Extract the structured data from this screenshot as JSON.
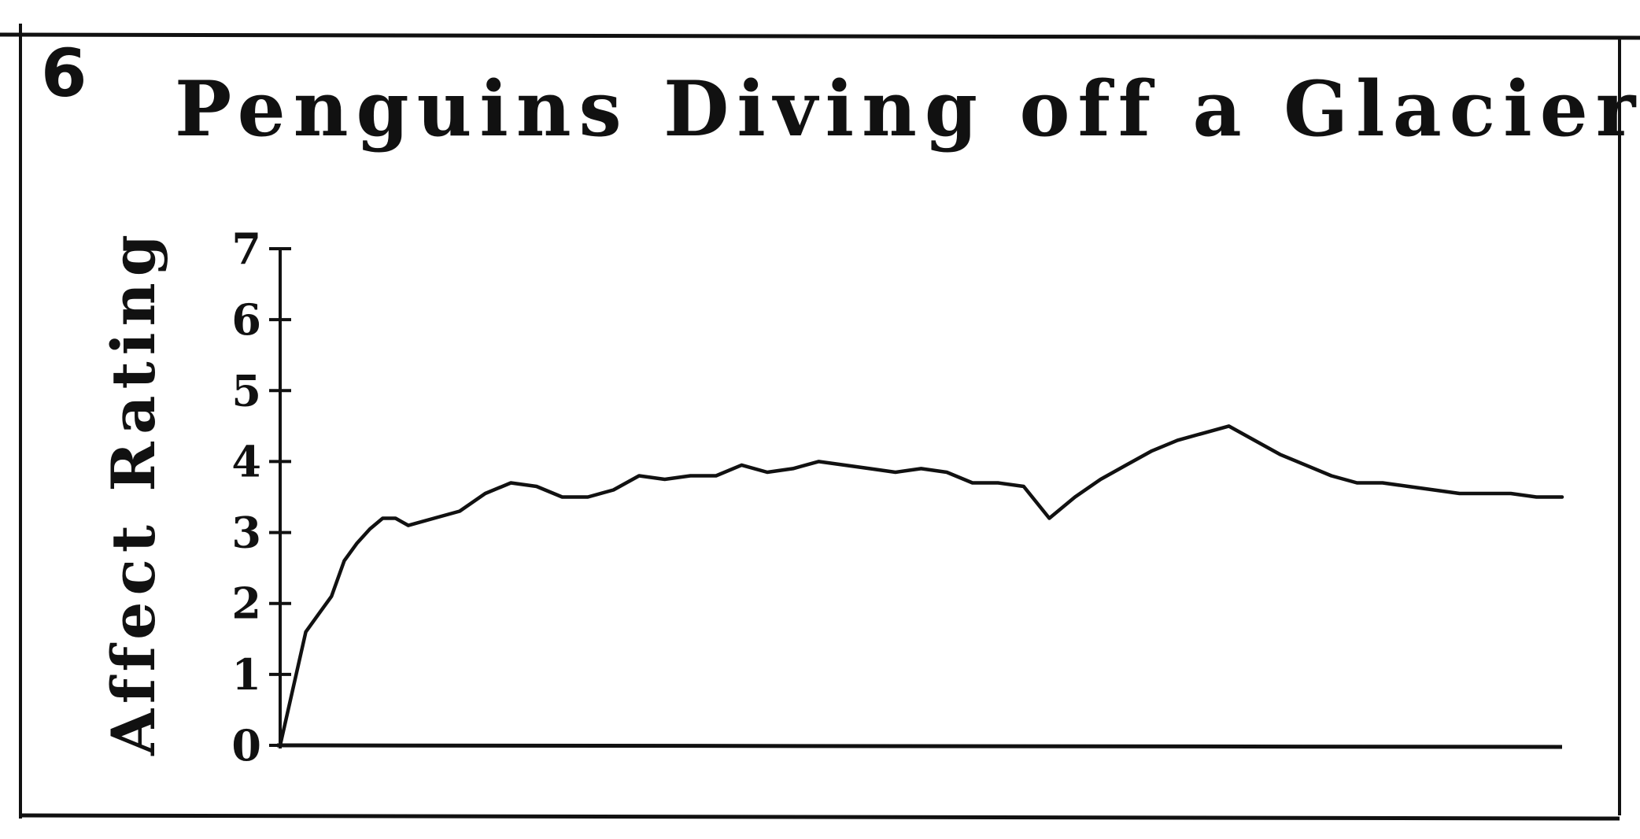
{
  "panel_number": "6",
  "colors": {
    "ink": "#111111",
    "background": "#ffffff"
  },
  "chart_data": {
    "type": "line",
    "title": "Penguins Diving off a Glacier",
    "xlabel": "",
    "ylabel": "Affect Rating",
    "ylim": [
      0,
      7
    ],
    "xlim": [
      0,
      100
    ],
    "y_ticks": [
      "0",
      "1",
      "2",
      "3",
      "4",
      "5",
      "6",
      "7"
    ],
    "grid": false,
    "legend": "none",
    "series": [
      {
        "x": [
          0,
          1,
          2,
          3,
          4,
          5,
          6,
          7,
          8,
          9,
          10,
          12,
          14,
          16,
          18,
          20,
          22,
          24,
          26,
          28,
          30,
          32,
          34,
          36,
          38,
          40,
          42,
          44,
          46,
          48,
          50,
          52,
          54,
          56,
          58,
          60,
          62,
          64,
          66,
          68,
          70,
          72,
          74,
          76,
          78,
          80,
          82,
          84,
          86,
          88,
          90,
          92,
          94,
          96,
          98,
          100
        ],
        "y": [
          0,
          0.8,
          1.6,
          1.85,
          2.1,
          2.6,
          2.85,
          3.05,
          3.2,
          3.2,
          3.1,
          3.2,
          3.3,
          3.55,
          3.7,
          3.65,
          3.5,
          3.5,
          3.6,
          3.8,
          3.75,
          3.8,
          3.8,
          3.95,
          3.85,
          3.9,
          4.0,
          3.95,
          3.9,
          3.85,
          3.9,
          3.85,
          3.7,
          3.7,
          3.65,
          3.2,
          3.5,
          3.75,
          3.95,
          4.15,
          4.3,
          4.4,
          4.5,
          4.3,
          4.1,
          3.95,
          3.8,
          3.7,
          3.7,
          3.65,
          3.6,
          3.55,
          3.55,
          3.55,
          3.5,
          3.5
        ]
      }
    ]
  }
}
